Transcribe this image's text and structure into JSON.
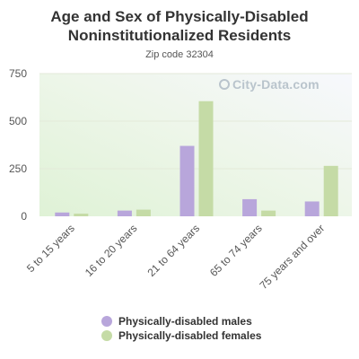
{
  "chart_data": {
    "type": "bar",
    "title": "Age and Sex of Physically-Disabled Noninstitutionalized Residents",
    "title_lines": [
      "Age and Sex of Physically-Disabled",
      "Noninstitutionalized Residents"
    ],
    "subtitle": "Zip code 32304",
    "watermark": "City-Data.com",
    "categories": [
      "5 to 15 years",
      "16 to 20 years",
      "21 to 64 years",
      "65 to 74 years",
      "75 years and over"
    ],
    "series": [
      {
        "name": "Physically-disabled males",
        "color": "#b8a6db",
        "values": [
          20,
          30,
          370,
          90,
          78
        ]
      },
      {
        "name": "Physically-disabled females",
        "color": "#c5dba6",
        "values": [
          14,
          35,
          605,
          30,
          265
        ]
      }
    ],
    "yticks": [
      "0",
      "250",
      "500",
      "750"
    ],
    "ylim": [
      0,
      750
    ],
    "grid": true,
    "legend_position": "bottom"
  }
}
